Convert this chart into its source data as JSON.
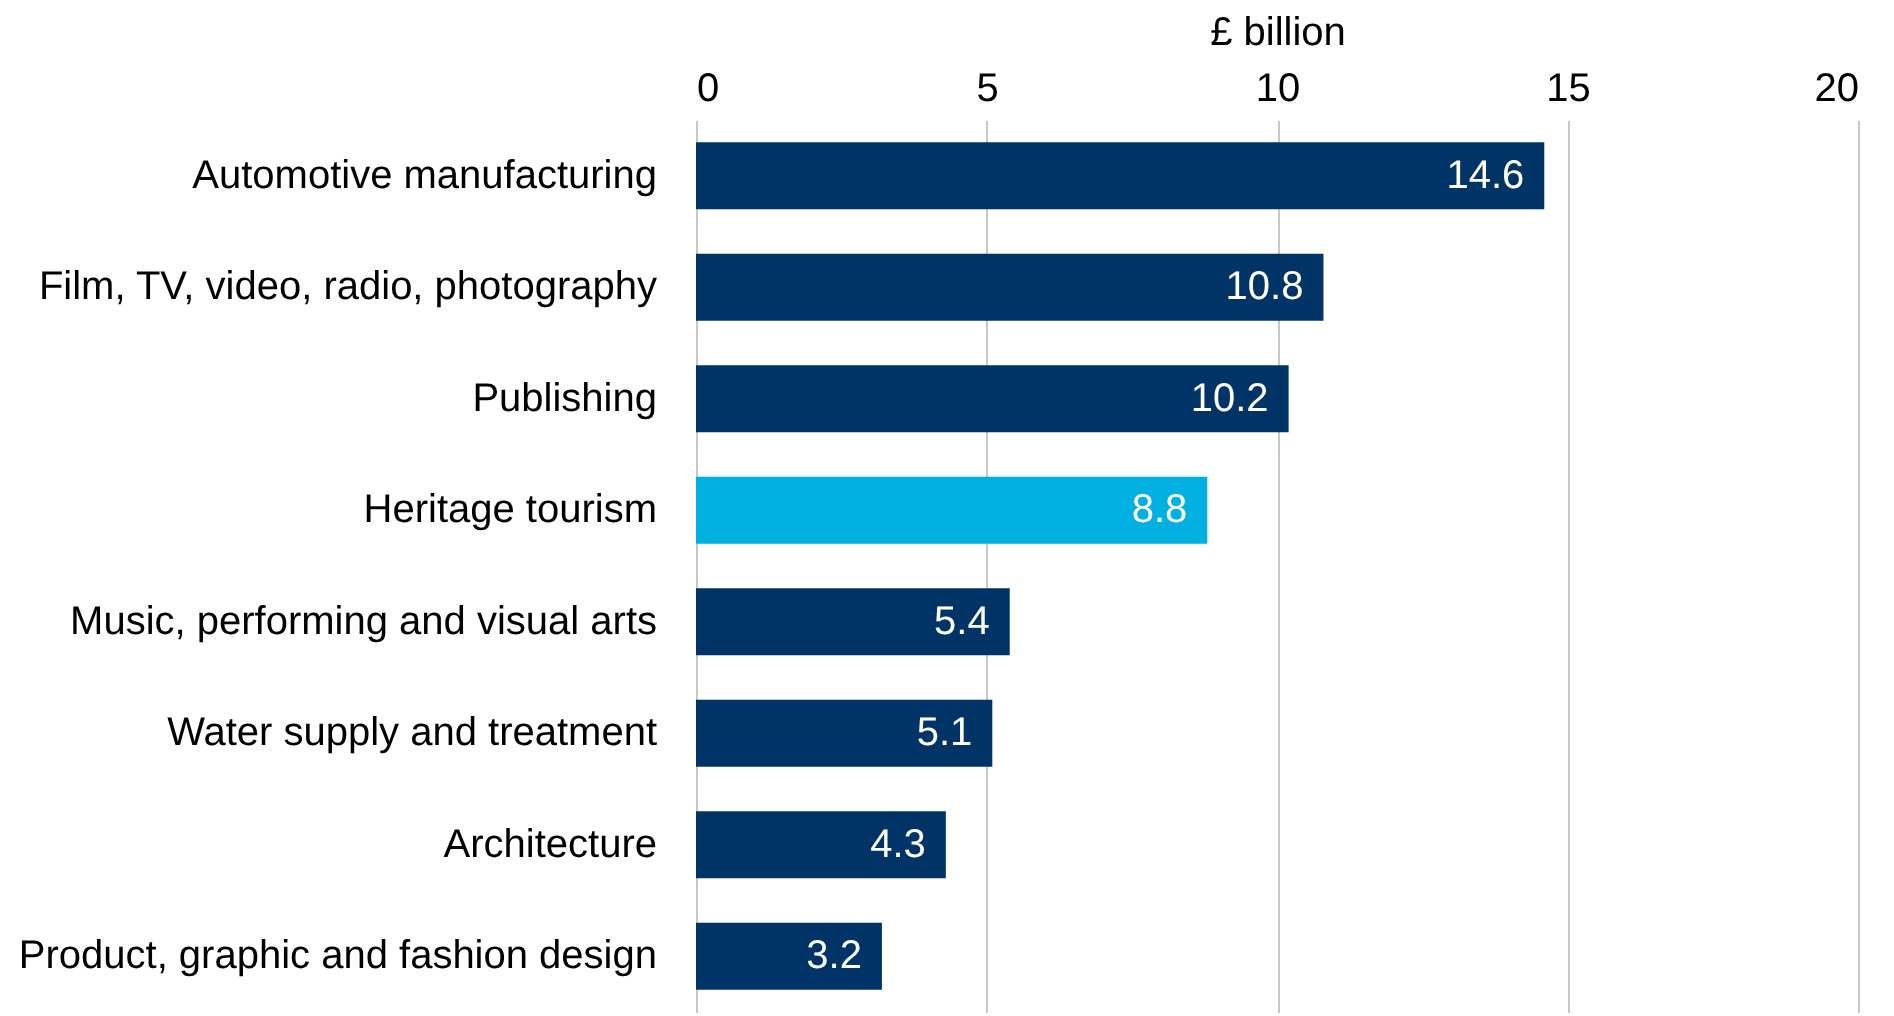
{
  "chart_data": {
    "type": "bar",
    "orientation": "horizontal",
    "xlabel": "£ billion",
    "categories": [
      "Automotive manufacturing",
      "Film, TV, video, radio, photography",
      "Publishing",
      "Heritage tourism",
      "Music, performing and visual arts",
      "Water supply and treatment",
      "Architecture",
      "Product, graphic and fashion design"
    ],
    "values": [
      14.6,
      10.8,
      10.2,
      8.8,
      5.4,
      5.1,
      4.3,
      3.2
    ],
    "colors": [
      "#003366",
      "#003366",
      "#003366",
      "#00b0e0",
      "#003366",
      "#003366",
      "#003366",
      "#003366"
    ],
    "xlim": [
      0,
      20
    ],
    "xticks": [
      0,
      5,
      10,
      15,
      20
    ],
    "grid": "x",
    "data_labels": true
  }
}
